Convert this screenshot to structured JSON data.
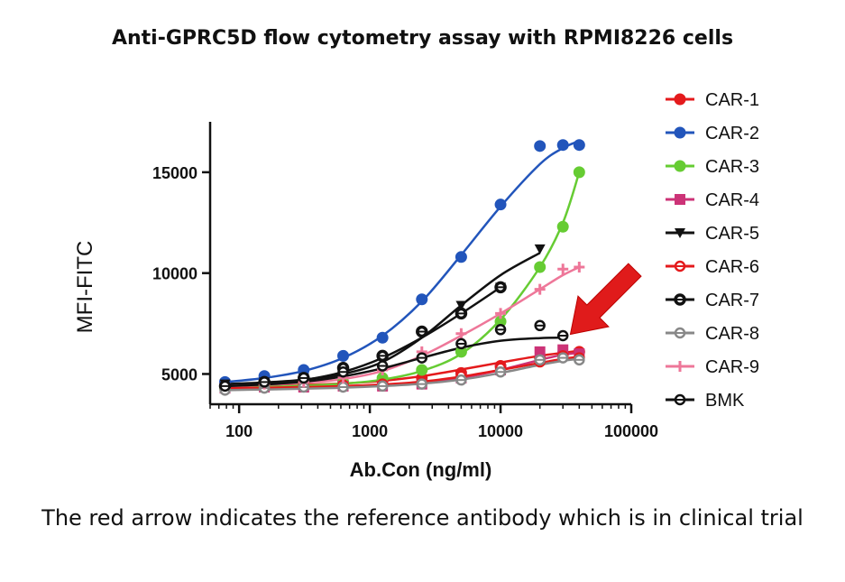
{
  "title": "Anti-GPRC5D flow cytometry assay with RPMI8226 cells",
  "caption": "The red arrow indicates the reference antibody which is in clinical trial",
  "chart_data": {
    "type": "scatter",
    "title": "Anti-GPRC5D flow cytometry assay with RPMI8226 cells",
    "xlabel": "Ab.Con (ng/ml)",
    "ylabel": "MFI-FITC",
    "x_scale": "log",
    "xlim": [
      60,
      100000
    ],
    "ylim": [
      3500,
      17500
    ],
    "x_ticks": [
      100,
      1000,
      10000,
      100000
    ],
    "x_tick_labels": [
      "100",
      "1000",
      "10000",
      "100000"
    ],
    "y_ticks": [
      5000,
      10000,
      15000
    ],
    "y_tick_labels": [
      "5000",
      "10000",
      "15000"
    ],
    "legend_position": "right",
    "annotation": "red arrow pointing at BMK curve",
    "series": [
      {
        "name": "CAR-1",
        "color": "#e41a1c",
        "marker": "circle",
        "x": [
          78,
          156,
          312,
          625,
          1250,
          2500,
          5000,
          10000,
          20000,
          30000,
          40000
        ],
        "y": [
          4400,
          4450,
          4500,
          4550,
          4650,
          4800,
          5050,
          5400,
          5800,
          6000,
          6100
        ],
        "fit": [
          4400,
          4420,
          4460,
          4530,
          4660,
          4890,
          5220,
          5570,
          5900,
          6050,
          6150
        ]
      },
      {
        "name": "CAR-2",
        "color": "#2255bb",
        "marker": "circle",
        "x": [
          78,
          156,
          312,
          625,
          1250,
          2500,
          5000,
          10000,
          20000,
          30000,
          40000
        ],
        "y": [
          4600,
          4900,
          5200,
          5900,
          6800,
          8700,
          10800,
          13400,
          16300,
          16350,
          16350
        ],
        "fit": [
          4600,
          4800,
          5150,
          5800,
          6900,
          8600,
          10900,
          13300,
          15400,
          16200,
          16550
        ]
      },
      {
        "name": "CAR-3",
        "color": "#66cc33",
        "marker": "circle",
        "x": [
          78,
          156,
          312,
          625,
          1250,
          2500,
          5000,
          10000,
          20000,
          30000,
          40000
        ],
        "y": [
          4300,
          4400,
          4500,
          4600,
          4800,
          5200,
          6100,
          7600,
          10300,
          12300,
          15000
        ],
        "fit": [
          4300,
          4350,
          4420,
          4520,
          4720,
          5150,
          6000,
          7700,
          10300,
          12500,
          15000
        ]
      },
      {
        "name": "CAR-4",
        "color": "#cc3377",
        "marker": "square",
        "x": [
          78,
          156,
          312,
          625,
          1250,
          2500,
          5000,
          10000,
          20000,
          30000,
          40000
        ],
        "y": [
          4300,
          4350,
          4350,
          4400,
          4400,
          4500,
          4800,
          5200,
          6100,
          6200,
          6000
        ],
        "fit": [
          4300,
          4310,
          4330,
          4360,
          4420,
          4550,
          4800,
          5200,
          5700,
          5950,
          6050
        ]
      },
      {
        "name": "CAR-5",
        "color": "#111111",
        "marker": "triangle-down",
        "x": [
          78,
          156,
          312,
          625,
          1250,
          2500,
          5000,
          10000,
          20000
        ],
        "y": [
          4500,
          4600,
          4800,
          5100,
          5700,
          7000,
          8400,
          9300,
          11200
        ],
        "fit": [
          4500,
          4580,
          4720,
          5000,
          5600,
          6800,
          8400,
          9900,
          11000
        ]
      },
      {
        "name": "CAR-6",
        "color": "#e41a1c",
        "marker": "open-circle-bar",
        "x": [
          78,
          156,
          312,
          625,
          1250,
          2500,
          5000,
          10000,
          20000,
          30000,
          40000
        ],
        "y": [
          4300,
          4350,
          4400,
          4450,
          4500,
          4600,
          4900,
          5300,
          5600,
          5900,
          5800
        ],
        "fit": [
          4300,
          4320,
          4350,
          4400,
          4480,
          4620,
          4870,
          5200,
          5550,
          5750,
          5850
        ]
      },
      {
        "name": "CAR-7",
        "color": "#111111",
        "marker": "open-circle-bar-thick",
        "x": [
          78,
          156,
          312,
          625,
          1250,
          2500,
          5000,
          10000
        ],
        "y": [
          4400,
          4600,
          4800,
          5300,
          5900,
          7100,
          8000,
          9300
        ],
        "fit": [
          4400,
          4500,
          4700,
          5100,
          5800,
          6800,
          8000,
          9300
        ]
      },
      {
        "name": "CAR-8",
        "color": "#888888",
        "marker": "open-circle-bar",
        "x": [
          78,
          156,
          312,
          625,
          1250,
          2500,
          5000,
          10000,
          20000,
          30000,
          40000
        ],
        "y": [
          4200,
          4300,
          4350,
          4350,
          4400,
          4500,
          4700,
          5100,
          5700,
          5800,
          5700
        ],
        "fit": [
          4200,
          4230,
          4270,
          4320,
          4400,
          4520,
          4720,
          5050,
          5450,
          5650,
          5750
        ]
      },
      {
        "name": "CAR-9",
        "color": "#ee7799",
        "marker": "plus",
        "x": [
          78,
          156,
          312,
          625,
          1250,
          2500,
          5000,
          10000,
          20000,
          30000,
          40000
        ],
        "y": [
          4400,
          4500,
          4600,
          4800,
          5200,
          6100,
          7000,
          8000,
          9200,
          10200,
          10300
        ],
        "fit": [
          4400,
          4460,
          4560,
          4750,
          5150,
          5900,
          6900,
          8000,
          9200,
          9900,
          10300
        ]
      },
      {
        "name": "BMK",
        "color": "#111111",
        "marker": "open-circle-cross",
        "x": [
          78,
          156,
          312,
          625,
          1250,
          2500,
          5000,
          10000,
          20000,
          30000
        ],
        "y": [
          4400,
          4600,
          4800,
          5100,
          5400,
          5800,
          6500,
          7200,
          7400,
          6900
        ],
        "fit": [
          4400,
          4480,
          4620,
          4880,
          5280,
          5800,
          6300,
          6650,
          6780,
          6800
        ]
      }
    ]
  }
}
